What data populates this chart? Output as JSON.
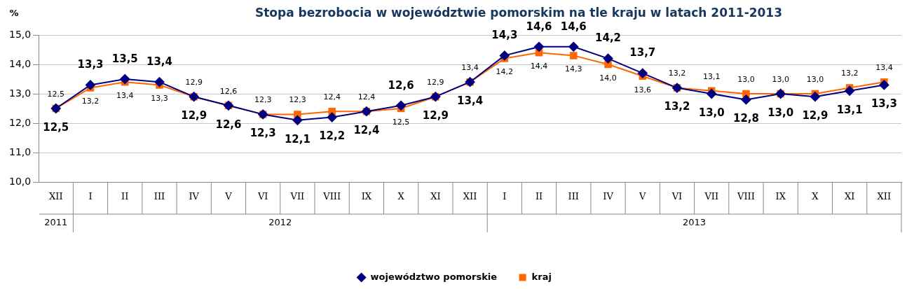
{
  "chart_data": {
    "type": "line",
    "title": "Stopa bezrobocia w województwie pomorskim na tle kraju w latach 2011-2013",
    "ylabel": "%",
    "categories": [
      "XII",
      "I",
      "II",
      "III",
      "IV",
      "V",
      "VI",
      "VII",
      "VIII",
      "IX",
      "X",
      "XI",
      "XII",
      "I",
      "II",
      "III",
      "IV",
      "V",
      "VI",
      "VII",
      "VIII",
      "IX",
      "X",
      "XI",
      "XII"
    ],
    "annotations": [
      "2011",
      "2012",
      "2013"
    ],
    "series": [
      {
        "name": "województwo pomorskie",
        "color": "#000080",
        "marker": "diamond",
        "values": [
          12.5,
          13.3,
          13.5,
          13.4,
          12.9,
          12.6,
          12.3,
          12.1,
          12.2,
          12.4,
          12.6,
          12.9,
          13.4,
          14.3,
          14.6,
          14.6,
          14.2,
          13.7,
          13.2,
          13.0,
          12.8,
          13.0,
          12.9,
          13.1,
          13.3
        ],
        "value_labels": [
          "12,5",
          "13,3",
          "13,5",
          "13,4",
          "12,9",
          "12,6",
          "12,3",
          "12,1",
          "12,2",
          "12,4",
          "12,6",
          "12,9",
          "13,4",
          "14,3",
          "14,6",
          "14,6",
          "14,2",
          "13,7",
          "13,2",
          "13,0",
          "12,8",
          "13,0",
          "12,9",
          "13,1",
          "13,3"
        ]
      },
      {
        "name": "kraj",
        "color": "#ff6600",
        "marker": "square",
        "values": [
          12.5,
          13.2,
          13.4,
          13.3,
          12.9,
          12.6,
          12.3,
          12.3,
          12.4,
          12.4,
          12.5,
          12.9,
          13.4,
          14.2,
          14.4,
          14.3,
          14.0,
          13.6,
          13.2,
          13.1,
          13.0,
          13.0,
          13.0,
          13.2,
          13.4
        ],
        "value_labels": [
          "12,5",
          "13,2",
          "13,4",
          "13,3",
          "12,9",
          "12,6",
          "12,3",
          "12,3",
          "12,4",
          "12,4",
          "12,5",
          "12,9",
          "13,4",
          "14,2",
          "14,4",
          "14,3",
          "14,0",
          "13,6",
          "13,2",
          "13,1",
          "13,0",
          "13,0",
          "13,0",
          "13,2",
          "13,4"
        ]
      }
    ],
    "ylim": [
      10,
      15
    ],
    "yticks": [
      {
        "value": 10,
        "label": "10,0"
      },
      {
        "value": 11,
        "label": "11,0"
      },
      {
        "value": 12,
        "label": "12,0"
      },
      {
        "value": 13,
        "label": "13,0"
      },
      {
        "value": 14,
        "label": "14,0"
      },
      {
        "value": 15,
        "label": "15,0"
      }
    ],
    "grid": "y",
    "legend": "bottom",
    "line_style": "solid"
  }
}
